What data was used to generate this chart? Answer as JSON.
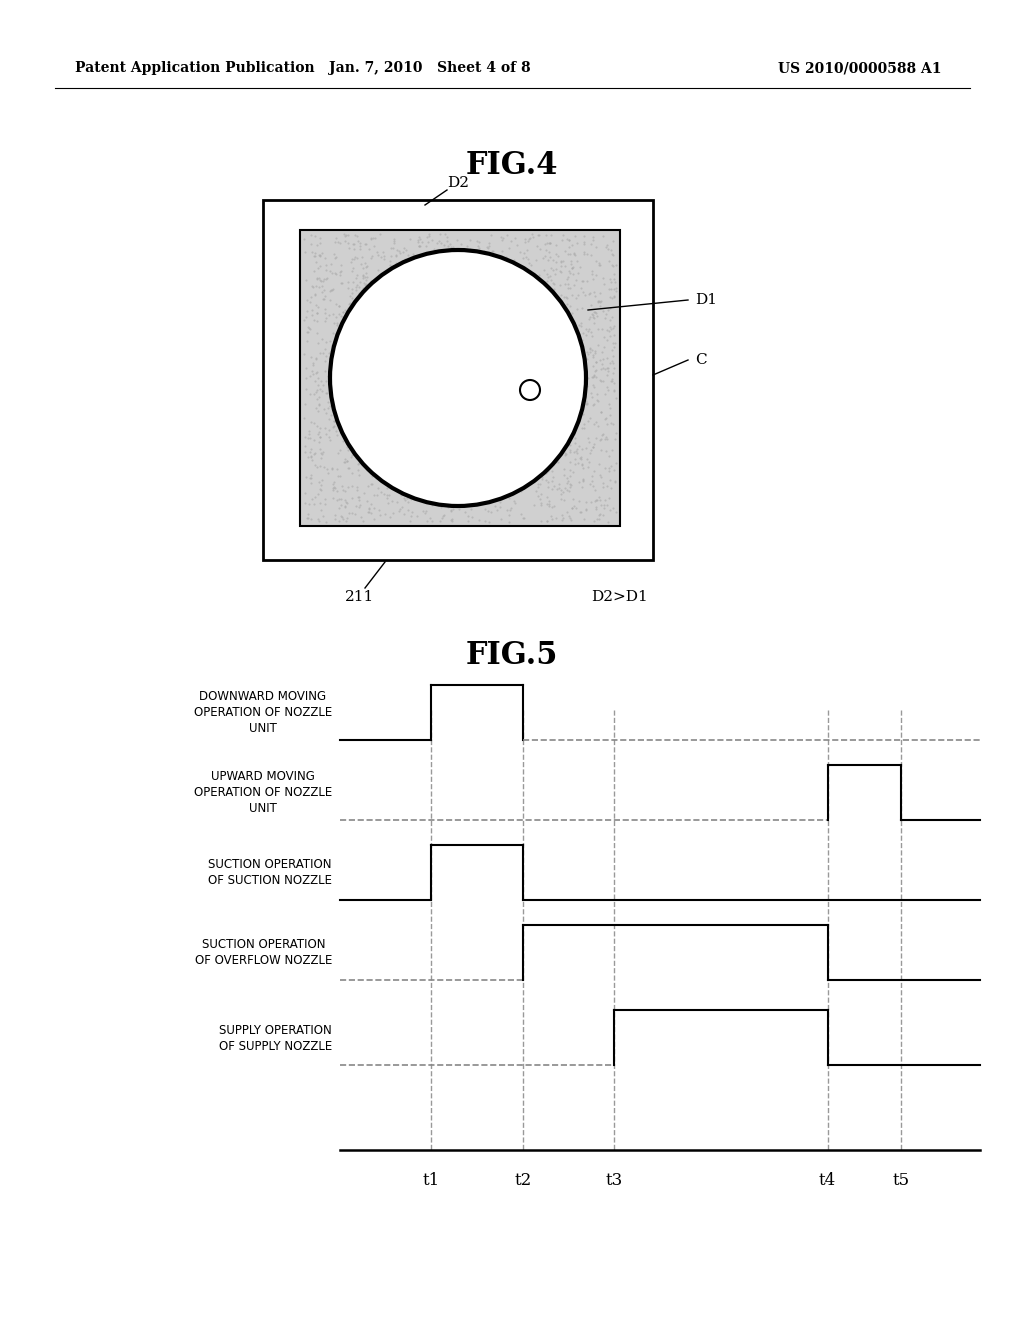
{
  "header_left": "Patent Application Publication",
  "header_mid": "Jan. 7, 2010   Sheet 4 of 8",
  "header_right": "US 2010/0000588 A1",
  "fig4_title": "FIG.4",
  "fig5_title": "FIG.5",
  "bg_color": "#ffffff",
  "hatching_color": "#d0d0d0",
  "timing_labels": [
    "DOWNWARD MOVING\nOPERATION OF NOZZLE\nUNIT",
    "UPWARD MOVING\nOPERATION OF NOZZLE\nUNIT",
    "SUCTION OPERATION\nOF SUCTION NOZZLE",
    "SUCTION OPERATION\nOF OVERFLOW NOZZLE",
    "SUPPLY OPERATION\nOF SUPPLY NOZZLE"
  ],
  "time_ticks": [
    "t1",
    "t2",
    "t3",
    "t4",
    "t5"
  ],
  "t_positions": [
    1.5,
    3.0,
    4.5,
    8.0,
    9.2
  ]
}
